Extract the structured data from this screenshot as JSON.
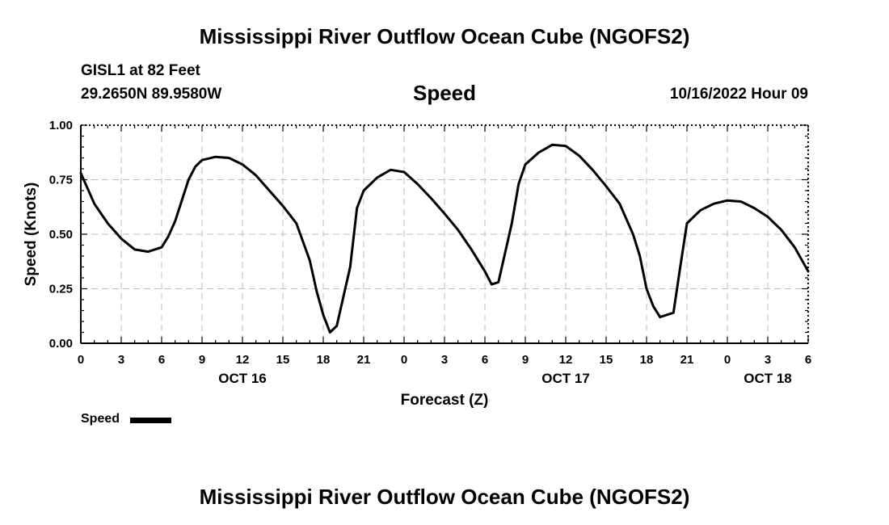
{
  "header": {
    "title": "Mississippi River Outflow Ocean Cube (NGOFS2)",
    "station": "GISL1 at 82 Feet",
    "coords": "29.2650N  89.9580W",
    "datetime": "10/16/2022 Hour 09"
  },
  "footer": {
    "title": "Mississippi River Outflow Ocean Cube (NGOFS2)"
  },
  "chart_data": {
    "type": "line",
    "title": "Speed",
    "xlabel": "Forecast (Z)",
    "ylabel": "Speed (Knots)",
    "xlim": [
      0,
      54
    ],
    "ylim": [
      0,
      1
    ],
    "grid": true,
    "y_ticks": [
      0,
      0.25,
      0.5,
      0.75,
      1.0
    ],
    "y_tick_labels": [
      "0.00",
      "0.25",
      "0.50",
      "0.75",
      "1.00"
    ],
    "x_ticks": [
      0,
      3,
      6,
      9,
      12,
      15,
      18,
      21,
      24,
      27,
      30,
      33,
      36,
      39,
      42,
      45,
      48,
      51,
      54
    ],
    "x_tick_labels": [
      "0",
      "3",
      "6",
      "9",
      "12",
      "15",
      "18",
      "21",
      "0",
      "3",
      "6",
      "9",
      "12",
      "15",
      "18",
      "21",
      "0",
      "3",
      "6"
    ],
    "date_labels": [
      {
        "x": 12,
        "label": "OCT 16"
      },
      {
        "x": 36,
        "label": "OCT 17"
      },
      {
        "x": 51,
        "label": "OCT 18"
      }
    ],
    "legend": [
      {
        "name": "Speed",
        "placement": "bottom-left"
      }
    ],
    "series": [
      {
        "name": "Speed",
        "x": [
          0,
          1,
          2,
          3,
          4,
          5,
          6,
          6.5,
          7,
          8,
          8.5,
          9,
          10,
          11,
          12,
          13,
          14,
          15,
          16,
          17,
          17.5,
          18,
          18.5,
          19,
          20,
          20.5,
          21,
          22,
          23,
          24,
          25,
          26,
          27,
          28,
          29,
          30,
          30.5,
          31,
          32,
          32.5,
          33,
          34,
          35,
          36,
          37,
          38,
          39,
          40,
          41,
          41.5,
          42,
          42.5,
          43,
          44,
          44.5,
          45,
          46,
          47,
          48,
          49,
          50,
          51,
          52,
          53,
          54
        ],
        "y": [
          0.78,
          0.64,
          0.55,
          0.48,
          0.43,
          0.42,
          0.44,
          0.49,
          0.56,
          0.75,
          0.81,
          0.84,
          0.855,
          0.85,
          0.82,
          0.77,
          0.7,
          0.63,
          0.55,
          0.38,
          0.24,
          0.13,
          0.05,
          0.08,
          0.35,
          0.62,
          0.7,
          0.76,
          0.795,
          0.785,
          0.73,
          0.665,
          0.595,
          0.52,
          0.43,
          0.33,
          0.27,
          0.28,
          0.55,
          0.73,
          0.82,
          0.875,
          0.91,
          0.905,
          0.86,
          0.795,
          0.72,
          0.64,
          0.5,
          0.4,
          0.25,
          0.17,
          0.12,
          0.14,
          0.35,
          0.55,
          0.61,
          0.64,
          0.655,
          0.65,
          0.62,
          0.58,
          0.52,
          0.44,
          0.33
        ]
      }
    ]
  }
}
